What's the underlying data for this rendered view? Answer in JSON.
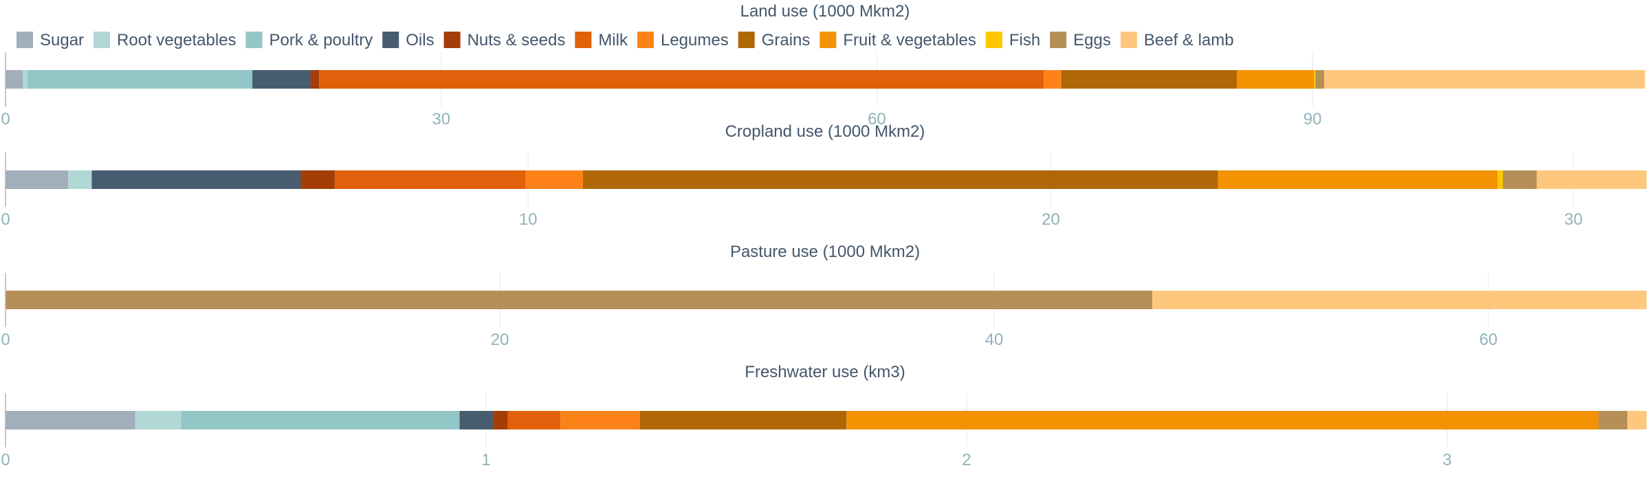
{
  "chart_data": {
    "type": "bar",
    "orientation": "horizontal-stacked",
    "categories": [
      "Sugar",
      "Root vegetables",
      "Pork & poultry",
      "Oils",
      "Nuts & seeds",
      "Milk",
      "Legumes",
      "Grains",
      "Fruit & vegetables",
      "Fish",
      "Eggs",
      "Beef & lamb"
    ],
    "colors": [
      "#a2aebb",
      "#b2d8d6",
      "#93c6c6",
      "#475c6f",
      "#a43d07",
      "#e0600b",
      "#fd8319",
      "#b06705",
      "#f39203",
      "#fec700",
      "#b68f58",
      "#fdc87d"
    ],
    "legend_position": "top",
    "grid": true,
    "panels": [
      {
        "title": "Land use (1000 Mkm2)",
        "values": [
          1.2,
          0.3,
          15.5,
          4.0,
          0.6,
          49.9,
          1.2,
          12.1,
          5.3,
          0.1,
          0.6,
          22.1
        ],
        "xlim": [
          0,
          113
        ],
        "ticks": [
          "0",
          "30",
          "60",
          "90"
        ],
        "tick_values": [
          0,
          30,
          60,
          90
        ]
      },
      {
        "title": "Cropland use (1000 Mkm2)",
        "values": [
          1.2,
          0.45,
          4.0,
          0.65,
          3.65,
          1.1,
          12.15,
          5.35,
          0.1,
          0.65,
          2.1
        ],
        "value_categories": [
          "Sugar",
          "Root vegetables",
          "Oils",
          "Nuts & seeds",
          "Milk",
          "Legumes",
          "Grains",
          "Fruit & vegetables",
          "Fish",
          "Eggs",
          "Beef & lamb"
        ],
        "xlim": [
          0,
          31.4
        ],
        "ticks": [
          "0",
          "10",
          "20",
          "30"
        ],
        "tick_values": [
          0,
          10,
          20,
          30
        ]
      },
      {
        "title": "Pasture use (1000 Mkm2)",
        "values": [
          46.4,
          20.0
        ],
        "value_categories": [
          "Eggs",
          "Beef & lamb"
        ],
        "xlim": [
          0,
          66.4
        ],
        "ticks": [
          "0",
          "20",
          "40",
          "60"
        ],
        "tick_values": [
          0,
          20,
          40,
          60
        ]
      },
      {
        "title": "Freshwater use (km3)",
        "values": [
          0.27,
          0.095,
          0.58,
          0.07,
          0.03,
          0.11,
          0.165,
          0.43,
          1.565,
          0.06,
          0.04
        ],
        "value_categories": [
          "Sugar",
          "Root vegetables",
          "Pork & poultry",
          "Oils",
          "Nuts & seeds",
          "Milk",
          "Legumes",
          "Grains",
          "Fruit & vegetables",
          "Eggs",
          "Beef & lamb"
        ],
        "xlim": [
          0,
          3.415
        ],
        "ticks": [
          "0",
          "1",
          "2",
          "3"
        ],
        "tick_values": [
          0,
          1,
          2,
          3
        ]
      }
    ]
  }
}
